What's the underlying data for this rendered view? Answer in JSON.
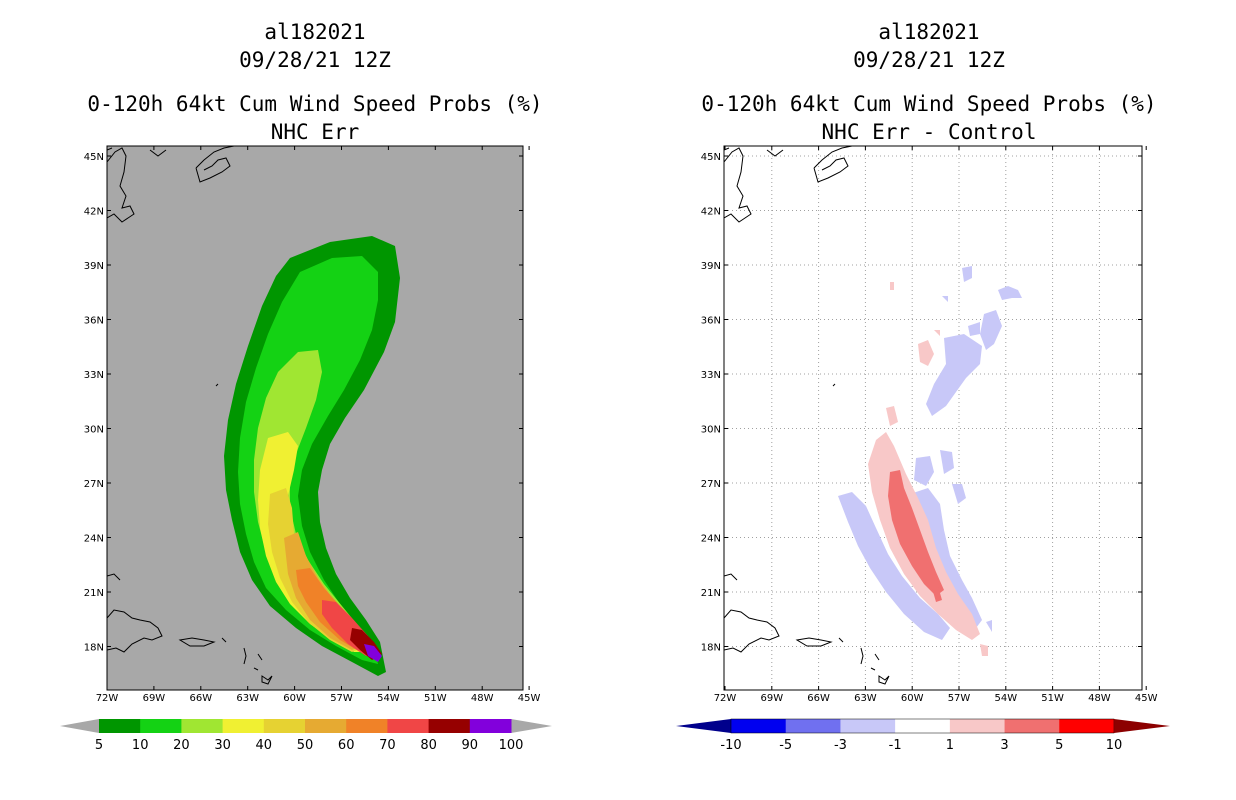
{
  "left_panel": {
    "title_line1": "al182021",
    "title_line2": "09/28/21 12Z",
    "title_line3": "0-120h 64kt Cum Wind Speed Probs (%)",
    "title_line4": "NHC Err",
    "lat_labels": [
      "45N",
      "42N",
      "39N",
      "36N",
      "33N",
      "30N",
      "27N",
      "24N",
      "21N",
      "18N"
    ],
    "lon_labels": [
      "72W",
      "69W",
      "66W",
      "63W",
      "60W",
      "57W",
      "54W",
      "51W",
      "48W",
      "45W"
    ],
    "colorbar_labels": [
      "5",
      "10",
      "20",
      "30",
      "40",
      "50",
      "60",
      "70",
      "80",
      "90",
      "100"
    ],
    "colorbar_colors": [
      "#009600",
      "#14d214",
      "#a0e632",
      "#f0f032",
      "#e6d232",
      "#e6aa32",
      "#f08228",
      "#f04646",
      "#960000",
      "#8200dc"
    ],
    "background_color": "#a8a8a8"
  },
  "right_panel": {
    "title_line1": "al182021",
    "title_line2": "09/28/21 12Z",
    "title_line3": "0-120h 64kt Cum Wind Speed Probs (%)",
    "title_line4": "NHC Err - Control",
    "lat_labels": [
      "45N",
      "42N",
      "39N",
      "36N",
      "33N",
      "30N",
      "27N",
      "24N",
      "21N",
      "18N"
    ],
    "lon_labels": [
      "72W",
      "69W",
      "66W",
      "63W",
      "60W",
      "57W",
      "54W",
      "51W",
      "48W",
      "45W"
    ],
    "colorbar_labels": [
      "-10",
      "-5",
      "-3",
      "-1",
      "1",
      "3",
      "5",
      "10"
    ],
    "colorbar_colors": [
      "#0000c8",
      "#0000f0",
      "#7070f0",
      "#c8c8f8",
      "#ffffff",
      "#f8c8c8",
      "#f07070",
      "#ff0000"
    ],
    "colorbar_end_colors": [
      "#00008c",
      "#8c0000"
    ],
    "positive_light": "#f8c8c8",
    "positive_mid": "#f07070",
    "negative_light": "#c8c8f8"
  }
}
